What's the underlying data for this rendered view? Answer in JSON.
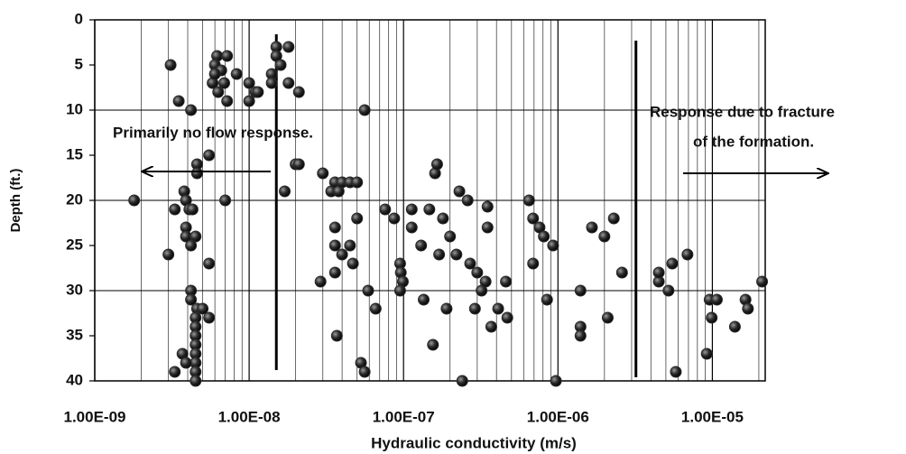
{
  "chart_data": {
    "type": "scatter",
    "xlabel": "Hydraulic conductivity (m/s)",
    "ylabel": "Depth (ft.)",
    "annotations": [
      "Primarily no flow response.",
      "Response due to fracture",
      "of the formation."
    ],
    "xlog": true,
    "xlim": [
      1e-09,
      2.2e-05
    ],
    "xticks": [
      {
        "value": 1e-09,
        "label": "1.00E-09"
      },
      {
        "value": 1e-08,
        "label": "1.00E-08"
      },
      {
        "value": 1e-07,
        "label": "1.00E-07"
      },
      {
        "value": 1e-06,
        "label": "1.00E-06"
      },
      {
        "value": 1e-05,
        "label": "1.00E-05"
      }
    ],
    "ylim": [
      0,
      40
    ],
    "yinverted": true,
    "yticks": [
      0,
      5,
      10,
      15,
      20,
      25,
      30,
      35,
      40
    ],
    "ygrid": [
      0,
      10,
      20,
      30,
      40
    ],
    "vlines": [
      1.5e-08,
      3.2e-06
    ],
    "color": "#2b2b2b",
    "x": [
      3.1e-09,
      1.8e-09,
      3e-09,
      3.3e-09,
      3.5e-09,
      4.2e-09,
      3.3e-09,
      3.8e-09,
      3.9e-09,
      4.1e-09,
      4.3e-09,
      3.9e-09,
      3.9e-09,
      4.5e-09,
      4.2e-09,
      4.2e-09,
      4.2e-09,
      4.6e-09,
      4.5e-09,
      4.5e-09,
      4.5e-09,
      4.5e-09,
      4.5e-09,
      4.5e-09,
      4.5e-09,
      4.5e-09,
      3.7e-09,
      3.9e-09,
      5e-09,
      5.5e-09,
      4.6e-09,
      4.6e-09,
      5.5e-09,
      5.5e-09,
      7e-09,
      6.2e-09,
      7.2e-09,
      6e-09,
      6.6e-09,
      5.8e-09,
      6.3e-09,
      6.9e-09,
      7.2e-09,
      8.3e-09,
      1e-08,
      1e-08,
      1.1e-08,
      1.14e-08,
      1.4e-08,
      1.4e-08,
      1.5e-08,
      1.5e-08,
      1.6e-08,
      1.8e-08,
      1.8e-08,
      2.1e-08,
      1.7e-08,
      2e-08,
      2.1e-08,
      6e-09,
      3e-08,
      3.4e-08,
      2.9e-08,
      3.6e-08,
      3.8e-08,
      4e-08,
      4.5e-08,
      5e-08,
      3.6e-08,
      3.6e-08,
      4e-08,
      4.5e-08,
      4.7e-08,
      3.6e-08,
      5e-08,
      3.7e-08,
      5.6e-08,
      5.9e-08,
      6.6e-08,
      5.3e-08,
      5.6e-08,
      7.6e-08,
      8.7e-08,
      9.5e-08,
      9.6e-08,
      9.9e-08,
      9.5e-08,
      1.13e-07,
      1.13e-07,
      1.3e-07,
      1.35e-07,
      1.47e-07,
      1.55e-07,
      1.6e-07,
      1.65e-07,
      1.7e-07,
      1.8e-07,
      1.9e-07,
      2e-07,
      2.2e-07,
      2.3e-07,
      2.4e-07,
      2.6e-07,
      2.7e-07,
      2.9e-07,
      3e-07,
      3.2e-07,
      3.4e-07,
      3.5e-07,
      3.5e-07,
      3.7e-07,
      4.1e-07,
      4.6e-07,
      4.7e-07,
      6.5e-07,
      6.9e-07,
      6.9e-07,
      7.6e-07,
      8.1e-07,
      8.5e-07,
      9.3e-07,
      9.7e-07,
      1.4e-06,
      1.4e-06,
      1.4e-06,
      1.66e-06,
      2e-06,
      2.1e-06,
      2.3e-06,
      2.6e-06,
      4.5e-06,
      4.5e-06,
      5.2e-06,
      5.5e-06,
      5.8e-06,
      6.9e-06,
      9.2e-06,
      9.6e-06,
      9.9e-06,
      1.07e-05,
      1.4e-05,
      1.64e-05,
      1.7e-05,
      2.1e-05
    ],
    "values": [
      5,
      20,
      26,
      21,
      9,
      10,
      39,
      19,
      20,
      21,
      21,
      23,
      24,
      24,
      25,
      30,
      31,
      32,
      33,
      34,
      35,
      36,
      37,
      38,
      39,
      40,
      37,
      38,
      32,
      33,
      16,
      17,
      15,
      27,
      20,
      4,
      4,
      5,
      5.6,
      7,
      8,
      7,
      9,
      6,
      7,
      9,
      8,
      8,
      6,
      7,
      3,
      4,
      5,
      3,
      7,
      8,
      19,
      16,
      16,
      6,
      17,
      19,
      29,
      18,
      19,
      18,
      18,
      18,
      23,
      25,
      26,
      25,
      27,
      28,
      22,
      35,
      10,
      30,
      32,
      38,
      39,
      21,
      22,
      27,
      28,
      29,
      30,
      21,
      23,
      25,
      31,
      21,
      36,
      17,
      16,
      26,
      22,
      32,
      24,
      26,
      19,
      40,
      20,
      27,
      32,
      28,
      30,
      29,
      23,
      20.7,
      34,
      32,
      29,
      33,
      20,
      22,
      27,
      23,
      24,
      31,
      25,
      40,
      34,
      35,
      30,
      23,
      24,
      33,
      22,
      28,
      29,
      28,
      30,
      27,
      39,
      26,
      37,
      31,
      33,
      31,
      34,
      31,
      32,
      29
    ]
  }
}
